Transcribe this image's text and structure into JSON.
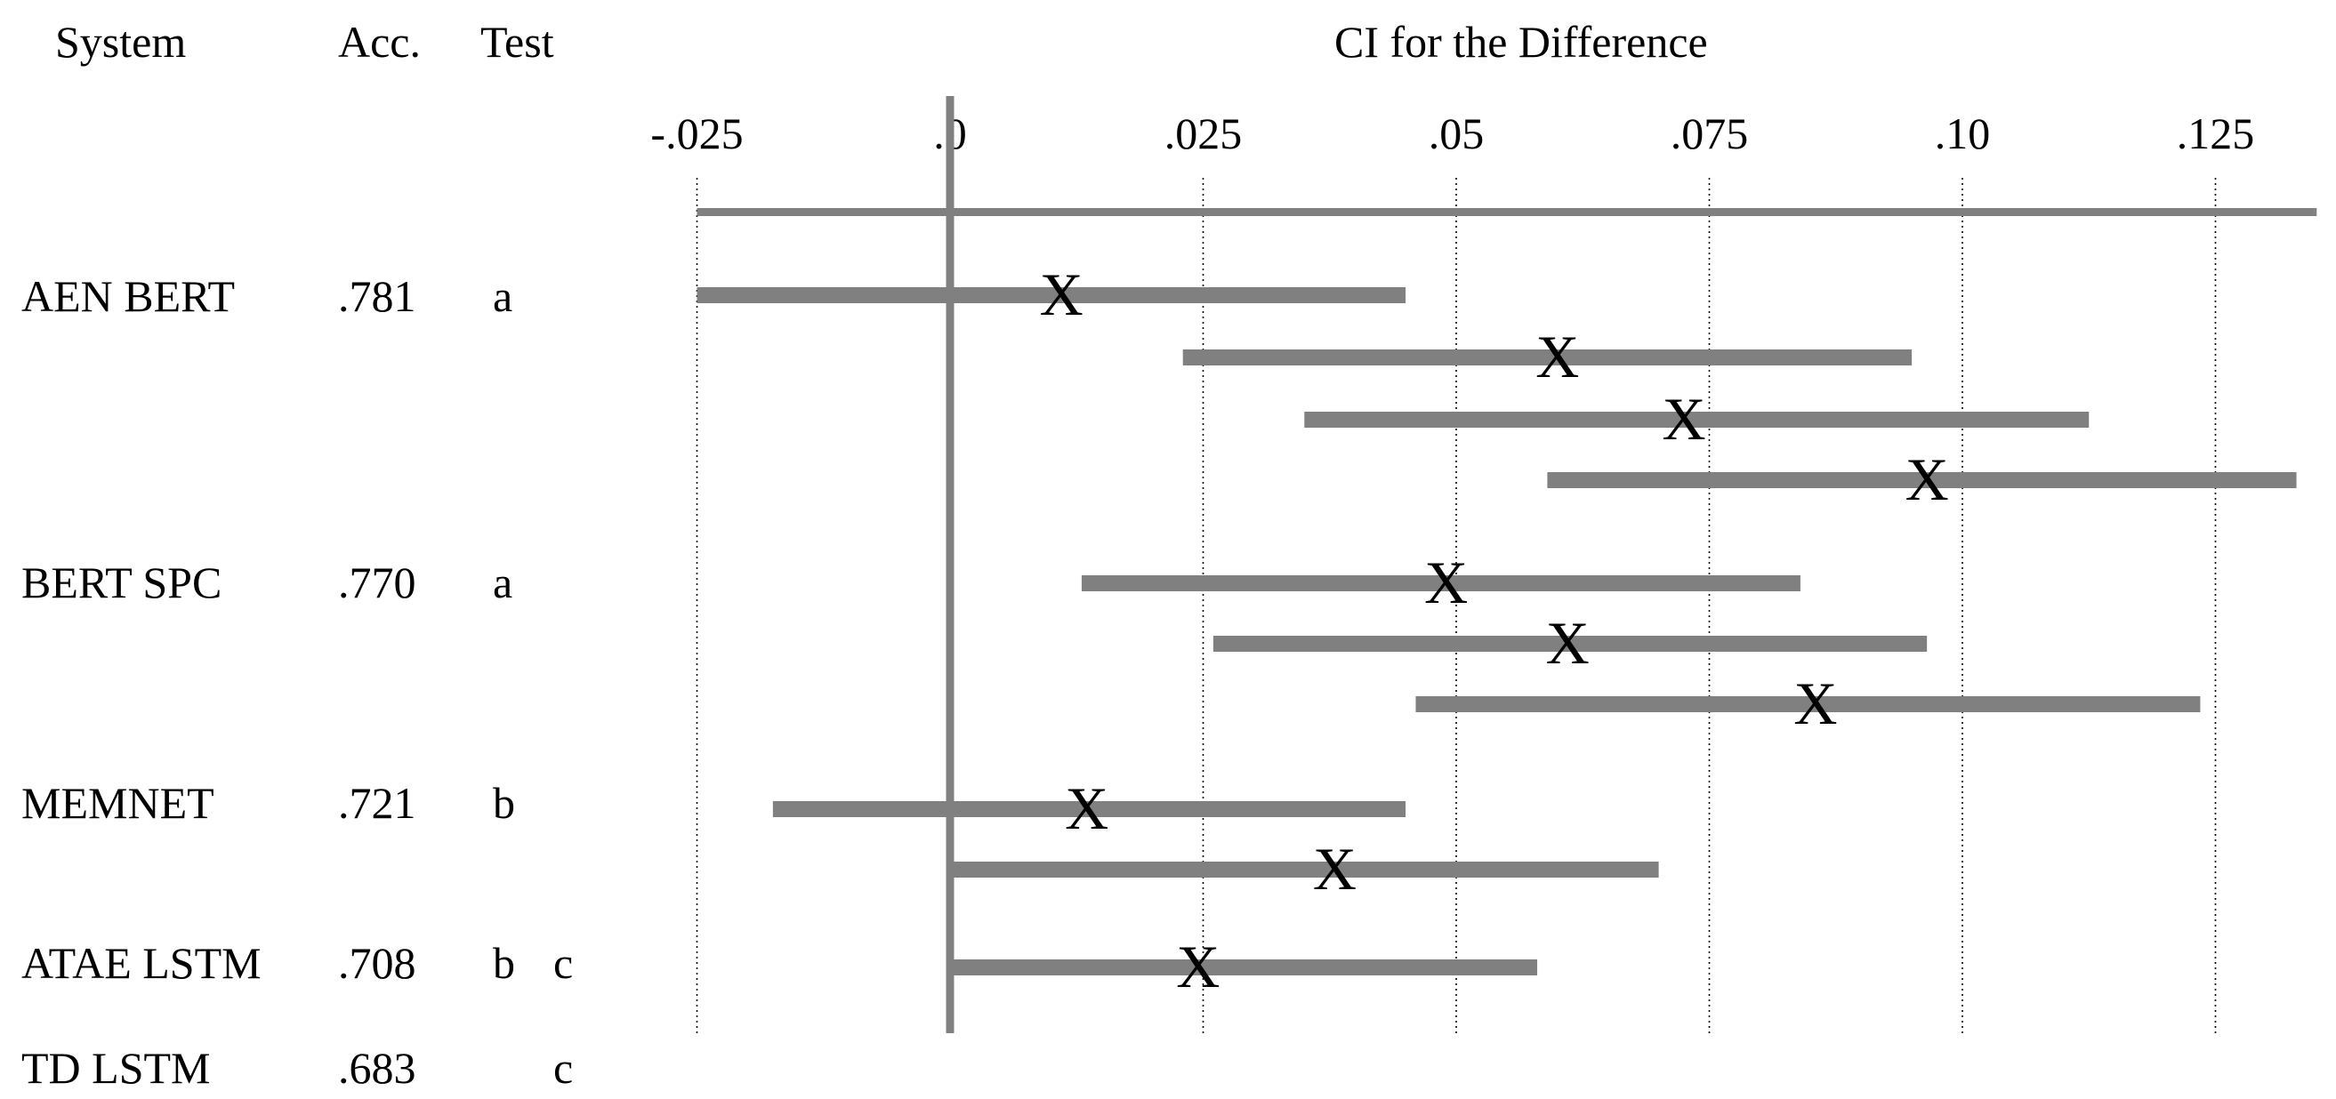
{
  "headers": {
    "system": "System",
    "acc": "Acc.",
    "test": "Test",
    "chart_title": "CI for the Difference"
  },
  "rows": [
    {
      "system": "AEN BERT",
      "acc": ".781",
      "test_a": "a",
      "test_b": ""
    },
    {
      "system": "BERT SPC",
      "acc": ".770",
      "test_a": "a",
      "test_b": ""
    },
    {
      "system": "MEMNET",
      "acc": ".721",
      "test_a": "b",
      "test_b": ""
    },
    {
      "system": "ATAE LSTM",
      "acc": ".708",
      "test_a": "b",
      "test_b": "c"
    },
    {
      "system": "TD LSTM",
      "acc": ".683",
      "test_a": "",
      "test_b": "c"
    }
  ],
  "chart_data": {
    "type": "interval",
    "title": "CI for the Difference",
    "xlim": [
      -0.025,
      0.135
    ],
    "ticks": [
      -0.025,
      0,
      0.025,
      0.05,
      0.075,
      0.1,
      0.125
    ],
    "tick_labels": [
      "-.025",
      ".0",
      ".025",
      ".05",
      ".075",
      ".10",
      ".125"
    ],
    "reference_line": 0,
    "full_range_line": [
      -0.025,
      0.135
    ],
    "grid": "vertical dotted",
    "point_marker": "X",
    "intervals": [
      {
        "low": -0.025,
        "high": 0.045,
        "point": 0.011
      },
      {
        "low": 0.023,
        "high": 0.095,
        "point": 0.06
      },
      {
        "low": 0.035,
        "high": 0.1125,
        "point": 0.0725
      },
      {
        "low": 0.059,
        "high": 0.133,
        "point": 0.0965
      },
      {
        "low": 0.013,
        "high": 0.084,
        "point": 0.049
      },
      {
        "low": 0.026,
        "high": 0.0965,
        "point": 0.061
      },
      {
        "low": 0.046,
        "high": 0.1235,
        "point": 0.0855
      },
      {
        "low": -0.0175,
        "high": 0.045,
        "point": 0.0135
      },
      {
        "low": 0.0,
        "high": 0.07,
        "point": 0.038
      },
      {
        "low": 0.0,
        "high": 0.058,
        "point": 0.0245
      }
    ]
  }
}
